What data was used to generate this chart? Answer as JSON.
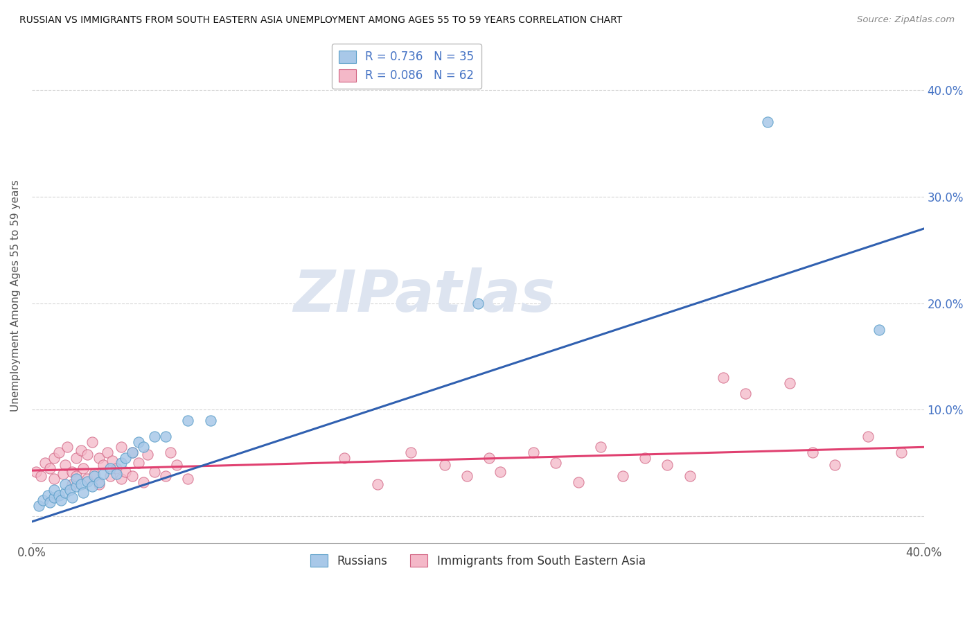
{
  "title": "RUSSIAN VS IMMIGRANTS FROM SOUTH EASTERN ASIA UNEMPLOYMENT AMONG AGES 55 TO 59 YEARS CORRELATION CHART",
  "source": "Source: ZipAtlas.com",
  "ylabel": "Unemployment Among Ages 55 to 59 years",
  "xlim": [
    0.0,
    0.4
  ],
  "ylim": [
    -0.025,
    0.44
  ],
  "legend_R1": "R = 0.736",
  "legend_N1": "N = 35",
  "legend_R2": "R = 0.086",
  "legend_N2": "N = 62",
  "color_russian": "#a8c8e8",
  "color_russian_edge": "#5a9ec8",
  "color_immigrant": "#f4b8c8",
  "color_immigrant_edge": "#d06080",
  "color_russian_line": "#3060b0",
  "color_immigrant_line": "#e04070",
  "watermark": "ZIPatlas",
  "watermark_color": "#dde4f0",
  "russians_x": [
    0.003,
    0.005,
    0.007,
    0.008,
    0.01,
    0.01,
    0.012,
    0.013,
    0.015,
    0.015,
    0.017,
    0.018,
    0.02,
    0.02,
    0.022,
    0.023,
    0.025,
    0.027,
    0.028,
    0.03,
    0.032,
    0.035,
    0.038,
    0.04,
    0.042,
    0.045,
    0.048,
    0.05,
    0.055,
    0.06,
    0.07,
    0.08,
    0.2,
    0.33,
    0.38
  ],
  "russians_y": [
    0.01,
    0.015,
    0.02,
    0.013,
    0.018,
    0.025,
    0.02,
    0.015,
    0.022,
    0.03,
    0.025,
    0.018,
    0.028,
    0.035,
    0.03,
    0.022,
    0.033,
    0.028,
    0.038,
    0.032,
    0.04,
    0.045,
    0.04,
    0.05,
    0.055,
    0.06,
    0.07,
    0.065,
    0.075,
    0.075,
    0.09,
    0.09,
    0.2,
    0.37,
    0.175
  ],
  "immigrants_x": [
    0.002,
    0.004,
    0.006,
    0.008,
    0.01,
    0.01,
    0.012,
    0.014,
    0.015,
    0.016,
    0.018,
    0.018,
    0.02,
    0.02,
    0.022,
    0.023,
    0.025,
    0.025,
    0.027,
    0.028,
    0.03,
    0.03,
    0.032,
    0.034,
    0.035,
    0.036,
    0.038,
    0.04,
    0.04,
    0.042,
    0.045,
    0.045,
    0.048,
    0.05,
    0.052,
    0.055,
    0.06,
    0.062,
    0.065,
    0.07,
    0.14,
    0.155,
    0.17,
    0.185,
    0.195,
    0.205,
    0.21,
    0.225,
    0.235,
    0.245,
    0.255,
    0.265,
    0.275,
    0.285,
    0.295,
    0.31,
    0.32,
    0.34,
    0.35,
    0.36,
    0.375,
    0.39
  ],
  "immigrants_y": [
    0.042,
    0.038,
    0.05,
    0.045,
    0.055,
    0.035,
    0.06,
    0.04,
    0.048,
    0.065,
    0.042,
    0.03,
    0.055,
    0.038,
    0.062,
    0.045,
    0.058,
    0.035,
    0.07,
    0.04,
    0.055,
    0.03,
    0.048,
    0.06,
    0.038,
    0.052,
    0.045,
    0.035,
    0.065,
    0.042,
    0.038,
    0.06,
    0.05,
    0.032,
    0.058,
    0.042,
    0.038,
    0.06,
    0.048,
    0.035,
    0.055,
    0.03,
    0.06,
    0.048,
    0.038,
    0.055,
    0.042,
    0.06,
    0.05,
    0.032,
    0.065,
    0.038,
    0.055,
    0.048,
    0.038,
    0.13,
    0.115,
    0.125,
    0.06,
    0.048,
    0.075,
    0.06
  ],
  "russian_line_x": [
    0.0,
    0.4
  ],
  "russian_line_y": [
    -0.005,
    0.27
  ],
  "immigrant_line_x": [
    0.0,
    0.4
  ],
  "immigrant_line_y": [
    0.043,
    0.065
  ]
}
